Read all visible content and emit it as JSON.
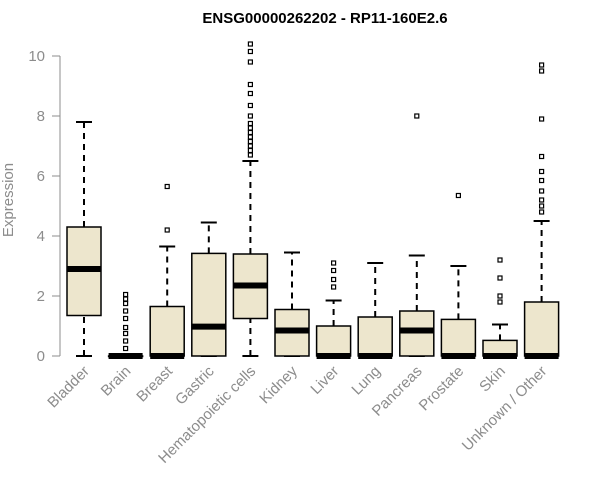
{
  "chart_data": {
    "type": "boxplot",
    "title": "ENSG00000262202 - RP11-160E2.6",
    "ylabel": "Expression",
    "ylim": [
      0,
      10.5
    ],
    "yticks": [
      0,
      2,
      4,
      6,
      8,
      10
    ],
    "colors": {
      "box_fill": "#ede6cd",
      "stroke": "#000000",
      "axis_text": "#8c8c8c"
    },
    "categories": [
      "Bladder",
      "Brain",
      "Breast",
      "Gastric",
      "Hematopoietic cells",
      "Kidney",
      "Liver",
      "Lung",
      "Pancreas",
      "Prostate",
      "Skin",
      "Unknown / Other"
    ],
    "boxes": [
      {
        "low": 0,
        "q1": 1.35,
        "median": 2.9,
        "q3": 4.3,
        "high": 7.8,
        "outliers": []
      },
      {
        "low": 0,
        "q1": 0,
        "median": 0,
        "q3": 0,
        "high": 0,
        "outliers": [
          0.25,
          0.5,
          0.75,
          0.95,
          1.25,
          1.5,
          1.75,
          1.9,
          2.05
        ]
      },
      {
        "low": 0,
        "q1": 0,
        "median": 0,
        "q3": 1.65,
        "high": 3.65,
        "outliers": [
          4.2,
          5.65
        ]
      },
      {
        "low": 0,
        "q1": 0,
        "median": 0.98,
        "q3": 3.42,
        "high": 4.45,
        "outliers": []
      },
      {
        "low": 0,
        "q1": 1.25,
        "median": 2.35,
        "q3": 3.4,
        "high": 6.5,
        "outliers": [
          6.7,
          6.85,
          7.0,
          7.15,
          7.3,
          7.45,
          7.6,
          7.75,
          8.0,
          8.35,
          8.75,
          9.05,
          9.8,
          10.15,
          10.4
        ]
      },
      {
        "low": 0,
        "q1": 0,
        "median": 0.85,
        "q3": 1.55,
        "high": 3.45,
        "outliers": []
      },
      {
        "low": 0,
        "q1": 0,
        "median": 0,
        "q3": 1.0,
        "high": 1.85,
        "outliers": [
          2.3,
          2.55,
          2.85,
          3.1
        ]
      },
      {
        "low": 0,
        "q1": 0,
        "median": 0,
        "q3": 1.3,
        "high": 3.1,
        "outliers": []
      },
      {
        "low": 0,
        "q1": 0,
        "median": 0.85,
        "q3": 1.5,
        "high": 3.35,
        "outliers": [
          8.0
        ]
      },
      {
        "low": 0,
        "q1": 0,
        "median": 0,
        "q3": 1.22,
        "high": 3.0,
        "outliers": [
          5.35
        ]
      },
      {
        "low": 0,
        "q1": 0,
        "median": 0,
        "q3": 0.52,
        "high": 1.05,
        "outliers": [
          1.8,
          2.0,
          2.6,
          3.2
        ]
      },
      {
        "low": 0,
        "q1": 0,
        "median": 0,
        "q3": 1.8,
        "high": 4.5,
        "outliers": [
          4.8,
          5.0,
          5.2,
          5.5,
          5.85,
          6.15,
          6.65,
          7.9,
          9.5,
          9.7
        ]
      }
    ]
  }
}
